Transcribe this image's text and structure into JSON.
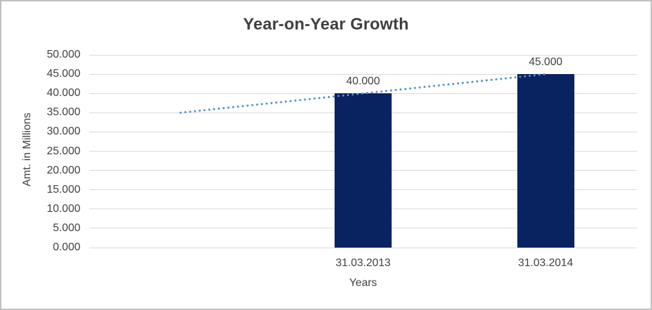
{
  "chart_data": {
    "type": "bar",
    "title": "Year-on-Year Growth",
    "xlabel": "Years",
    "ylabel": "Amt. in Millions",
    "categories": [
      "",
      "31.03.2013",
      "31.03.2014"
    ],
    "series": [
      {
        "name": "amount-bars",
        "type": "bar",
        "values": [
          null,
          40,
          45
        ],
        "value_labels": [
          "",
          "40.000",
          "45.000"
        ],
        "color": "#092260"
      },
      {
        "name": "dotted-trendline",
        "type": "line",
        "style": "dotted",
        "values": [
          35,
          40,
          45
        ],
        "color": "#5291cf"
      }
    ],
    "ylim": [
      0,
      50
    ],
    "ytick_step": 5,
    "ytick_labels": [
      "0.000",
      "5.000",
      "10.000",
      "15.000",
      "20.000",
      "25.000",
      "30.000",
      "35.000",
      "40.000",
      "45.000",
      "50.000"
    ],
    "grid": true,
    "legend": false
  },
  "colors": {
    "bar": "#092260",
    "trendline": "#5291cf",
    "gridline": "#d9d9d9",
    "text": "#404040",
    "title_text": "#3f3f3f",
    "frame_border": "#bfbfbf",
    "background": "#ffffff"
  }
}
